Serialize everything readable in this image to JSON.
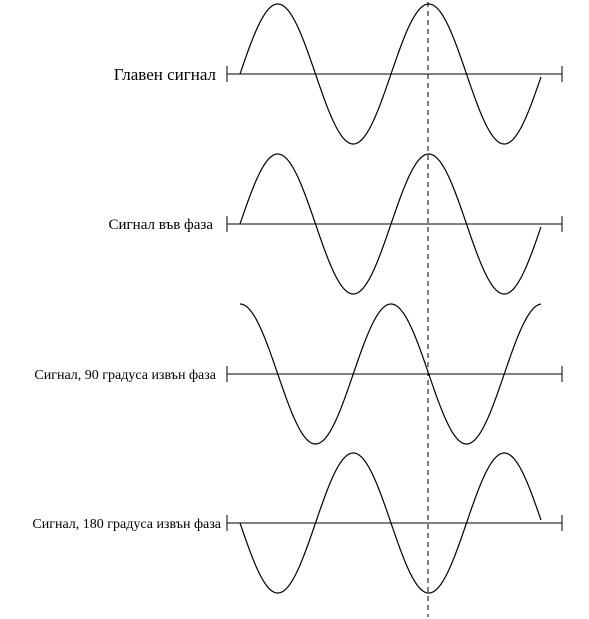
{
  "signals": [
    {
      "label": "Главен сигнал",
      "phase_deg": 0
    },
    {
      "label": "Сигнал във фаза",
      "phase_deg": 0
    },
    {
      "label": "Сигнал, 90 градуса извън фаза",
      "phase_deg": 90
    },
    {
      "label": "Сигнал, 180 градуса извън фаза",
      "phase_deg": 180
    }
  ]
}
